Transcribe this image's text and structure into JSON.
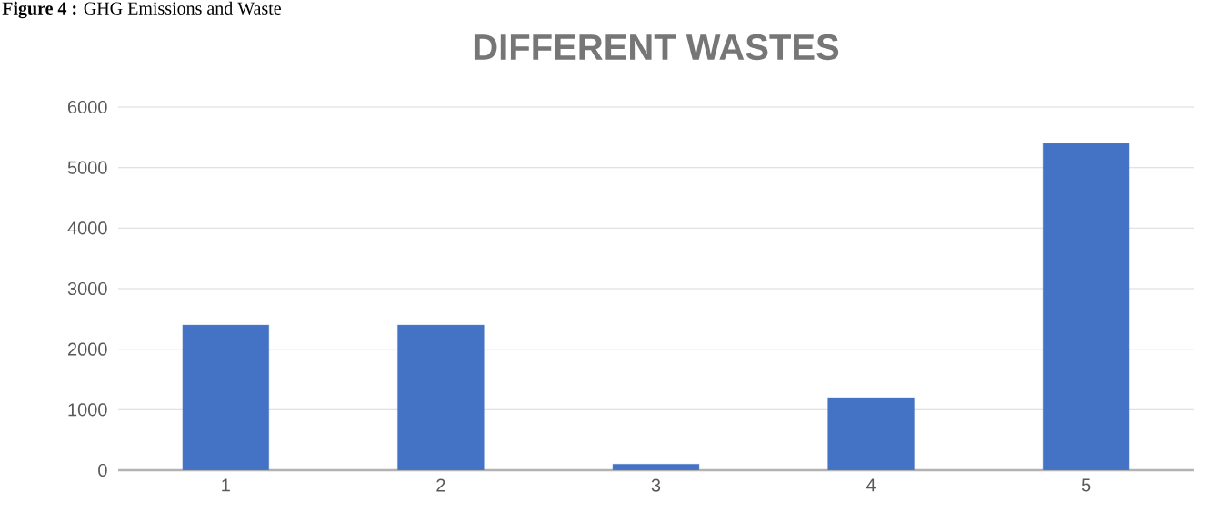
{
  "chart_data": {
    "type": "bar",
    "title": "DIFFERENT WASTES",
    "annotations": [
      "**Figure 4 :** GHG Emissions and Waste"
    ],
    "categories": [
      "1",
      "2",
      "3",
      "4",
      "5"
    ],
    "values": [
      2400,
      2400,
      100,
      1200,
      5400
    ],
    "color": "#4472c4",
    "ylim": [
      0,
      6000
    ],
    "yticks": [
      0,
      1000,
      2000,
      3000,
      4000,
      5000,
      6000
    ],
    "grid": "y"
  }
}
